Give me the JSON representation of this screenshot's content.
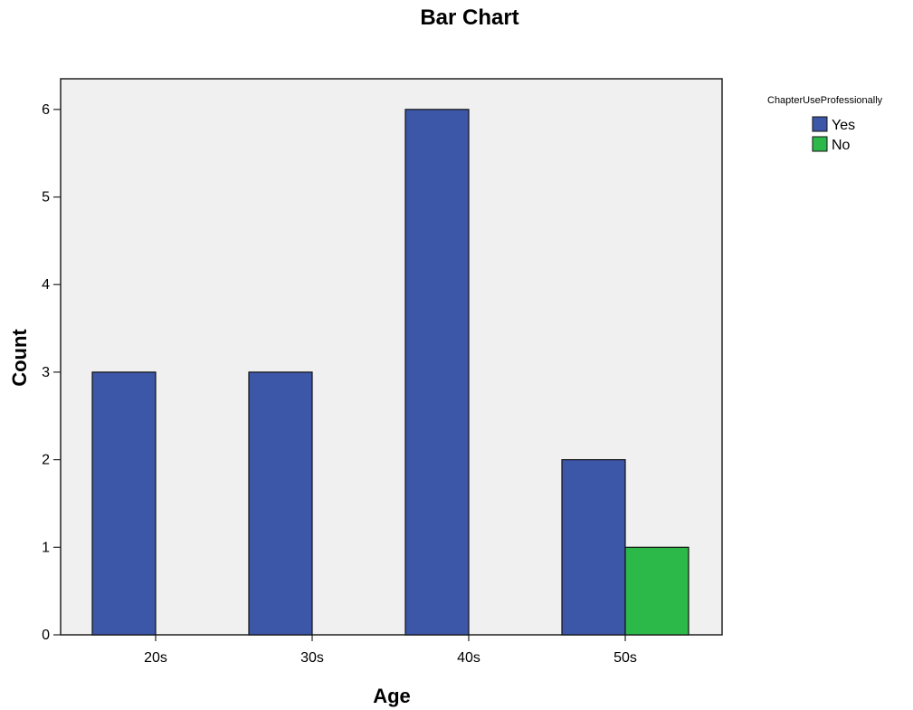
{
  "chart_data": {
    "type": "bar",
    "title": "Bar Chart",
    "xlabel": "Age",
    "ylabel": "Count",
    "categories": [
      "20s",
      "30s",
      "40s",
      "50s"
    ],
    "series": [
      {
        "name": "Yes",
        "values": [
          3,
          3,
          6,
          2
        ],
        "color": "#3c57a8"
      },
      {
        "name": "No",
        "values": [
          0,
          0,
          0,
          1
        ],
        "color": "#2db84a"
      }
    ],
    "ylim": [
      0,
      6.35
    ],
    "yticks": [
      "0",
      "1",
      "2",
      "3",
      "4",
      "5",
      "6"
    ],
    "grid": false,
    "legend": {
      "title": "ChapterUseProfessionally",
      "position": "right-top"
    },
    "plot_background": "#f0f0f0"
  }
}
